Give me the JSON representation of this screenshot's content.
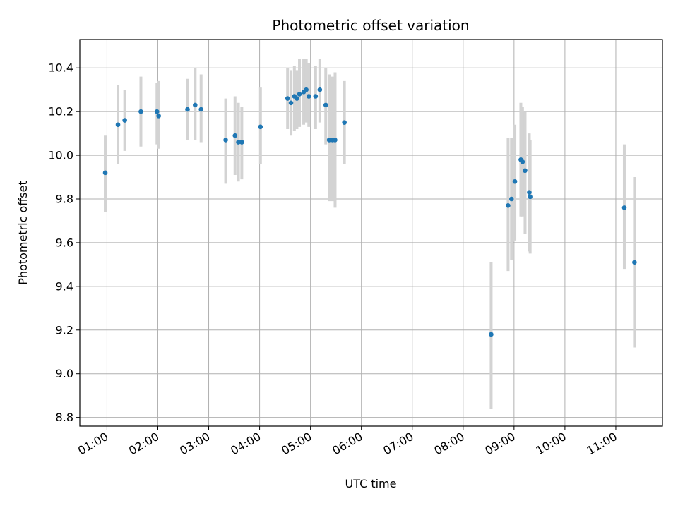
{
  "chart_data": {
    "type": "scatter",
    "title": "Photometric offset variation",
    "xlabel": "UTC time",
    "ylabel": "Photometric offset",
    "x_axis": {
      "kind": "time",
      "range": [
        "00:28",
        "11:55"
      ],
      "ticks": [
        "01:00",
        "02:00",
        "03:00",
        "04:00",
        "05:00",
        "06:00",
        "07:00",
        "08:00",
        "09:00",
        "10:00",
        "11:00"
      ]
    },
    "y_axis": {
      "range": [
        8.76,
        10.53
      ],
      "ticks": [
        "8.8",
        "9.0",
        "9.2",
        "9.4",
        "9.6",
        "9.8",
        "10.0",
        "10.2",
        "10.4"
      ]
    },
    "grid": true,
    "marker_color": "#1f77b4",
    "errorbar_color": "#d3d3d3",
    "series": [
      {
        "points": [
          {
            "x": "00:58",
            "y": 9.92,
            "lo": 9.74,
            "hi": 10.09
          },
          {
            "x": "01:13",
            "y": 10.14,
            "lo": 9.96,
            "hi": 10.32
          },
          {
            "x": "01:21",
            "y": 10.16,
            "lo": 10.02,
            "hi": 10.3
          },
          {
            "x": "01:40",
            "y": 10.2,
            "lo": 10.04,
            "hi": 10.36
          },
          {
            "x": "01:59",
            "y": 10.2,
            "lo": 10.05,
            "hi": 10.33
          },
          {
            "x": "02:01",
            "y": 10.18,
            "lo": 10.03,
            "hi": 10.34
          },
          {
            "x": "02:35",
            "y": 10.21,
            "lo": 10.07,
            "hi": 10.35
          },
          {
            "x": "02:44",
            "y": 10.23,
            "lo": 10.07,
            "hi": 10.4
          },
          {
            "x": "02:51",
            "y": 10.21,
            "lo": 10.06,
            "hi": 10.37
          },
          {
            "x": "03:20",
            "y": 10.07,
            "lo": 9.87,
            "hi": 10.26
          },
          {
            "x": "03:31",
            "y": 10.09,
            "lo": 9.91,
            "hi": 10.27
          },
          {
            "x": "03:35",
            "y": 10.06,
            "lo": 9.88,
            "hi": 10.24
          },
          {
            "x": "03:39",
            "y": 10.06,
            "lo": 9.89,
            "hi": 10.22
          },
          {
            "x": "04:01",
            "y": 10.13,
            "lo": 9.96,
            "hi": 10.31
          },
          {
            "x": "04:33",
            "y": 10.26,
            "lo": 10.12,
            "hi": 10.4
          },
          {
            "x": "04:37",
            "y": 10.24,
            "lo": 10.09,
            "hi": 10.39
          },
          {
            "x": "04:41",
            "y": 10.27,
            "lo": 10.11,
            "hi": 10.41
          },
          {
            "x": "04:44",
            "y": 10.26,
            "lo": 10.12,
            "hi": 10.39
          },
          {
            "x": "04:47",
            "y": 10.28,
            "lo": 10.13,
            "hi": 10.44
          },
          {
            "x": "04:52",
            "y": 10.29,
            "lo": 10.14,
            "hi": 10.44
          },
          {
            "x": "04:55",
            "y": 10.3,
            "lo": 10.15,
            "hi": 10.44
          },
          {
            "x": "04:58",
            "y": 10.27,
            "lo": 10.13,
            "hi": 10.42
          },
          {
            "x": "05:06",
            "y": 10.27,
            "lo": 10.12,
            "hi": 10.41
          },
          {
            "x": "05:11",
            "y": 10.3,
            "lo": 10.15,
            "hi": 10.44
          },
          {
            "x": "05:18",
            "y": 10.23,
            "lo": 10.05,
            "hi": 10.4
          },
          {
            "x": "05:22",
            "y": 10.07,
            "lo": 9.79,
            "hi": 10.37
          },
          {
            "x": "05:26",
            "y": 10.07,
            "lo": 9.79,
            "hi": 10.36
          },
          {
            "x": "05:29",
            "y": 10.07,
            "lo": 9.76,
            "hi": 10.38
          },
          {
            "x": "05:40",
            "y": 10.15,
            "lo": 9.96,
            "hi": 10.34
          },
          {
            "x": "08:33",
            "y": 9.18,
            "lo": 8.84,
            "hi": 9.51
          },
          {
            "x": "08:53",
            "y": 9.77,
            "lo": 9.47,
            "hi": 10.08
          },
          {
            "x": "08:57",
            "y": 9.8,
            "lo": 9.52,
            "hi": 10.08
          },
          {
            "x": "09:01",
            "y": 9.88,
            "lo": 9.61,
            "hi": 10.14
          },
          {
            "x": "09:08",
            "y": 9.98,
            "lo": 9.72,
            "hi": 10.24
          },
          {
            "x": "09:10",
            "y": 9.97,
            "lo": 9.72,
            "hi": 10.22
          },
          {
            "x": "09:13",
            "y": 9.93,
            "lo": 9.64,
            "hi": 10.2
          },
          {
            "x": "09:18",
            "y": 9.83,
            "lo": 9.56,
            "hi": 10.1
          },
          {
            "x": "09:19",
            "y": 9.81,
            "lo": 9.55,
            "hi": 10.07
          },
          {
            "x": "11:10",
            "y": 9.76,
            "lo": 9.48,
            "hi": 10.05
          },
          {
            "x": "11:22",
            "y": 9.51,
            "lo": 9.12,
            "hi": 9.9
          }
        ]
      }
    ]
  }
}
